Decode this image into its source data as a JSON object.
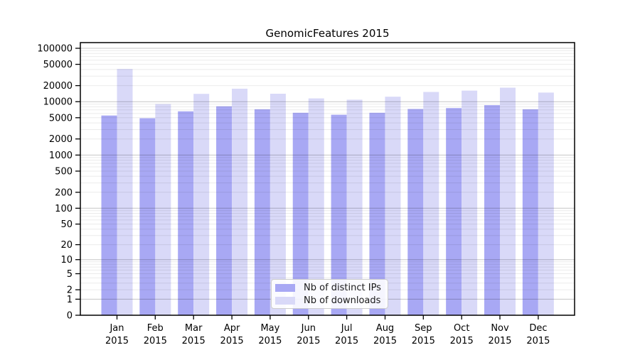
{
  "chart_data": {
    "type": "bar",
    "title": "GenomicFeatures 2015",
    "categories": [
      "Jan",
      "Feb",
      "Mar",
      "Apr",
      "May",
      "Jun",
      "Jul",
      "Aug",
      "Sep",
      "Oct",
      "Nov",
      "Dec"
    ],
    "x_tick_year": "2015",
    "series": [
      {
        "name": "Nb of distinct IPs",
        "color": "#a8a8f4",
        "values": [
          5500,
          4900,
          6600,
          8200,
          7200,
          6200,
          5700,
          6200,
          7300,
          7600,
          8600,
          7200
        ]
      },
      {
        "name": "Nb of downloads",
        "color": "#d9d9f8",
        "values": [
          41000,
          9000,
          14000,
          17500,
          14100,
          11500,
          10900,
          12400,
          15200,
          16100,
          18300,
          14800
        ]
      }
    ],
    "y_ticks": [
      100000,
      50000,
      20000,
      10000,
      5000,
      2000,
      1000,
      500,
      200,
      100,
      50,
      20,
      10,
      5,
      2,
      1,
      0
    ],
    "y_scale": "log1p",
    "ylim": [
      0,
      100000
    ],
    "grid": true,
    "grid_major_color": "#c6c6c6",
    "grid_minor_color": "#ebebeb",
    "axis_color": "#000000",
    "legend_position": "inside-bottom-center"
  }
}
